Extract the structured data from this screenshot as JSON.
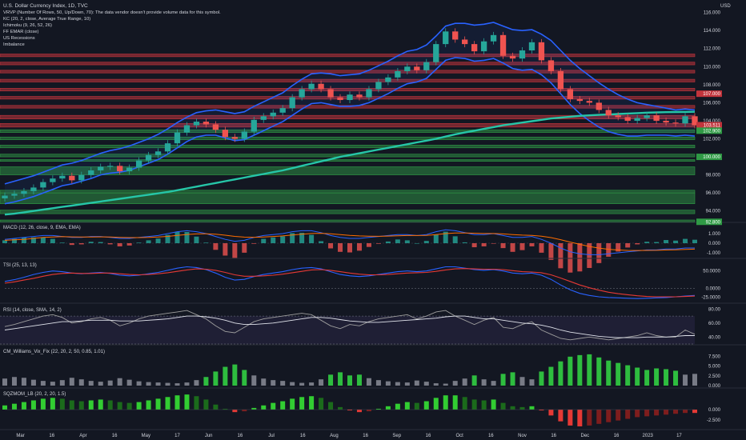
{
  "header": {
    "title": "U.S. Dollar Currency Index, 1D, TVC",
    "indicators": [
      "VRVP (Number Of Rows, 50, Up/Down, 70): The data vendor doesn't provide volume data for this symbol.",
      "KC (20, 2, close, Average True Range, 10)",
      "Ichimoku (9, 26, 52, 26)",
      "FF EMAR (close)",
      "US Recessions",
      "Imbalance"
    ],
    "currency": "USD"
  },
  "colors": {
    "background": "#131722",
    "red_zone": "#c2343c",
    "green_zone": "#2f9a45",
    "ema200": "#26c6a8",
    "keltner": "#2962ff",
    "up": "#26a69a",
    "down": "#ef5350",
    "axis_text": "#d1d4dc",
    "macd": "#2962ff",
    "signal": "#ff6d00",
    "tsi": "#2962ff",
    "tsi_signal": "#e53935",
    "rsi": "#9e9e9e",
    "rsi_band": "#7e57c2"
  },
  "chart_data": [
    {
      "type": "line",
      "panel": "price",
      "y_ticks": [
        94.0,
        96.0,
        98.0,
        100.0,
        102.0,
        104.0,
        106.0,
        108.0,
        110.0,
        112.0,
        114.0,
        116.0
      ],
      "ylim": [
        93.0,
        116.5
      ],
      "x_labels": [
        "Mar",
        "16",
        "Apr",
        "16",
        "May",
        "17",
        "Jun",
        "16",
        "Jul",
        "16",
        "Aug",
        "16",
        "Sep",
        "16",
        "Oct",
        "16",
        "Nov",
        "16",
        "Dec",
        "16",
        "2023",
        "17"
      ],
      "price_badges": [
        {
          "value": "107.000",
          "color": "#c2343c",
          "y": 107.0
        },
        {
          "value": "103.511",
          "color": "#c2343c",
          "y": 103.51
        },
        {
          "value": "102.900",
          "color": "#2f9a45",
          "y": 102.9
        },
        {
          "value": "100.000",
          "color": "#2f9a45",
          "y": 100.0
        },
        {
          "value": "92.800",
          "color": "#2f9a45",
          "y": 92.8
        }
      ],
      "resistance_zones": [
        [
          111.1,
          111.4
        ],
        [
          110.2,
          110.5
        ],
        [
          109.3,
          109.6
        ],
        [
          108.3,
          108.6
        ],
        [
          107.3,
          107.6
        ],
        [
          106.4,
          106.7
        ],
        [
          105.4,
          105.7
        ],
        [
          104.2,
          104.6
        ],
        [
          103.3,
          103.7
        ]
      ],
      "support_zones": [
        [
          102.7,
          103.0
        ],
        [
          101.9,
          102.2
        ],
        [
          101.0,
          101.3
        ],
        [
          100.0,
          100.3
        ],
        [
          99.5,
          99.7
        ],
        [
          98.0,
          98.9
        ],
        [
          96.0,
          96.3
        ],
        [
          94.8,
          96.0
        ],
        [
          93.7,
          94.1
        ],
        [
          92.8,
          93.0
        ]
      ],
      "close": [
        95.7,
        95.9,
        96.2,
        96.6,
        97.2,
        97.6,
        97.9,
        97.4,
        98.0,
        98.5,
        98.9,
        99.0,
        98.4,
        98.8,
        99.6,
        100.2,
        100.6,
        101.5,
        102.7,
        103.5,
        103.9,
        103.6,
        103.0,
        102.2,
        102.0,
        102.8,
        104.1,
        104.5,
        104.9,
        105.4,
        106.6,
        107.5,
        108.1,
        107.5,
        106.6,
        106.3,
        106.9,
        106.6,
        107.5,
        108.3,
        108.8,
        109.5,
        110.0,
        109.6,
        110.5,
        112.5,
        113.9,
        113.0,
        112.5,
        111.7,
        112.8,
        113.5,
        111.2,
        110.9,
        111.8,
        112.7,
        110.7,
        109.5,
        107.5,
        106.4,
        106.2,
        106.0,
        105.2,
        104.6,
        104.4,
        104.0,
        104.3,
        104.6,
        104.0,
        103.8,
        103.7,
        104.5,
        103.5
      ],
      "ema200": [
        93.6,
        93.7,
        93.85,
        94.0,
        94.15,
        94.3,
        94.45,
        94.6,
        94.75,
        94.9,
        95.05,
        95.2,
        95.35,
        95.5,
        95.65,
        95.8,
        95.95,
        96.1,
        96.3,
        96.5,
        96.7,
        96.9,
        97.1,
        97.3,
        97.5,
        97.7,
        97.9,
        98.1,
        98.3,
        98.5,
        98.75,
        99.0,
        99.25,
        99.5,
        99.75,
        100.0,
        100.2,
        100.4,
        100.6,
        100.8,
        101.0,
        101.2,
        101.4,
        101.6,
        101.8,
        102.0,
        102.25,
        102.5,
        102.7,
        102.9,
        103.1,
        103.3,
        103.5,
        103.65,
        103.8,
        103.95,
        104.1,
        104.25,
        104.35,
        104.45,
        104.55,
        104.6,
        104.65,
        104.7,
        104.75,
        104.8,
        104.85,
        104.9,
        104.93,
        104.95,
        104.97,
        104.98,
        105.0
      ],
      "kc_upper": [
        97.0,
        97.3,
        97.6,
        97.9,
        98.3,
        98.7,
        99.1,
        99.3,
        99.6,
        100.0,
        100.4,
        100.7,
        100.9,
        101.2,
        101.6,
        102.0,
        102.5,
        103.1,
        103.8,
        104.4,
        104.9,
        105.1,
        105.2,
        105.0,
        104.8,
        105.0,
        105.6,
        106.1,
        106.6,
        107.1,
        107.9,
        108.6,
        109.2,
        109.3,
        109.2,
        109.0,
        109.1,
        109.2,
        109.6,
        110.1,
        110.6,
        111.2,
        111.7,
        111.9,
        112.4,
        113.4,
        114.5,
        114.8,
        114.8,
        114.6,
        114.7,
        114.9,
        114.5,
        114.1,
        114.0,
        114.1,
        113.6,
        112.9,
        111.8,
        110.7,
        109.8,
        109.0,
        108.2,
        107.5,
        106.9,
        106.4,
        106.0,
        105.8,
        105.6,
        105.4,
        105.2,
        105.3,
        105.2
      ],
      "kc_lower": [
        94.8,
        95.0,
        95.3,
        95.6,
        96.0,
        96.4,
        96.8,
        97.0,
        97.3,
        97.6,
        98.0,
        98.2,
        98.3,
        98.5,
        98.9,
        99.3,
        99.7,
        100.3,
        101.0,
        101.7,
        102.2,
        102.4,
        102.4,
        102.1,
        101.8,
        101.9,
        102.4,
        102.9,
        103.4,
        103.9,
        104.6,
        105.3,
        105.9,
        106.0,
        105.8,
        105.6,
        105.6,
        105.7,
        106.0,
        106.5,
        107.0,
        107.6,
        108.1,
        108.3,
        108.7,
        109.7,
        110.7,
        111.0,
        110.9,
        110.6,
        110.7,
        110.9,
        110.4,
        109.8,
        109.6,
        109.7,
        109.1,
        108.2,
        107.0,
        105.8,
        104.8,
        104.0,
        103.3,
        102.8,
        102.5,
        102.3,
        102.3,
        102.4,
        102.4,
        102.4,
        102.3,
        102.4,
        102.3
      ]
    },
    {
      "type": "bar",
      "panel": "macd",
      "title": "MACD (12, 26, close, 9, EMA, EMA)",
      "y_ticks": [
        1.0,
        0.0,
        -1.0
      ],
      "ylim": [
        -1.5,
        1.5
      ],
      "macd": [
        0.4,
        0.5,
        0.6,
        0.7,
        0.8,
        0.8,
        0.7,
        0.6,
        0.6,
        0.7,
        0.7,
        0.6,
        0.5,
        0.5,
        0.6,
        0.7,
        0.8,
        1.0,
        1.2,
        1.3,
        1.2,
        1.0,
        0.7,
        0.4,
        0.2,
        0.3,
        0.6,
        0.8,
        0.9,
        1.0,
        1.2,
        1.3,
        1.3,
        1.1,
        0.8,
        0.6,
        0.5,
        0.5,
        0.6,
        0.7,
        0.8,
        0.9,
        0.9,
        0.8,
        0.9,
        1.2,
        1.4,
        1.3,
        1.1,
        0.9,
        0.9,
        1.0,
        0.8,
        0.6,
        0.6,
        0.7,
        0.4,
        0.0,
        -0.5,
        -0.9,
        -1.1,
        -1.2,
        -1.2,
        -1.1,
        -1.0,
        -0.9,
        -0.8,
        -0.7,
        -0.7,
        -0.6,
        -0.6,
        -0.5,
        -0.5
      ],
      "signal": [
        0.3,
        0.35,
        0.4,
        0.5,
        0.6,
        0.65,
        0.68,
        0.66,
        0.64,
        0.65,
        0.66,
        0.64,
        0.61,
        0.58,
        0.58,
        0.6,
        0.64,
        0.71,
        0.81,
        0.91,
        0.97,
        0.98,
        0.93,
        0.83,
        0.71,
        0.63,
        0.62,
        0.65,
        0.7,
        0.76,
        0.85,
        0.94,
        1.01,
        1.03,
        0.98,
        0.9,
        0.82,
        0.76,
        0.73,
        0.72,
        0.74,
        0.77,
        0.8,
        0.8,
        0.82,
        0.9,
        1.0,
        1.06,
        1.07,
        1.04,
        1.01,
        1.01,
        0.97,
        0.9,
        0.84,
        0.81,
        0.73,
        0.58,
        0.37,
        0.12,
        -0.12,
        -0.34,
        -0.51,
        -0.63,
        -0.71,
        -0.75,
        -0.76,
        -0.75,
        -0.74,
        -0.71,
        -0.69,
        -0.65,
        -0.62
      ]
    },
    {
      "type": "line",
      "panel": "tsi",
      "title": "TSI (25, 13, 13)",
      "y_ticks": [
        50.0,
        0.0,
        -25.0
      ],
      "ylim": [
        -40,
        70
      ],
      "tsi": [
        20,
        25,
        32,
        40,
        46,
        50,
        48,
        44,
        42,
        44,
        46,
        43,
        38,
        36,
        38,
        42,
        46,
        52,
        58,
        62,
        60,
        54,
        44,
        32,
        24,
        26,
        34,
        40,
        44,
        48,
        54,
        58,
        60,
        56,
        48,
        40,
        36,
        34,
        36,
        40,
        44,
        48,
        50,
        48,
        50,
        56,
        62,
        62,
        58,
        54,
        52,
        54,
        50,
        44,
        42,
        44,
        38,
        26,
        10,
        -4,
        -14,
        -20,
        -24,
        -26,
        -27,
        -28,
        -29,
        -28,
        -27,
        -26,
        -24,
        -22,
        -20
      ],
      "signal": [
        15,
        19,
        24,
        29,
        35,
        40,
        43,
        44,
        43,
        43,
        44,
        44,
        42,
        40,
        39,
        40,
        42,
        45,
        49,
        53,
        56,
        55,
        52,
        46,
        39,
        35,
        35,
        36,
        38,
        41,
        45,
        49,
        53,
        54,
        52,
        48,
        44,
        41,
        39,
        39,
        40,
        42,
        44,
        45,
        46,
        49,
        53,
        56,
        57,
        56,
        55,
        55,
        54,
        51,
        48,
        47,
        45,
        39,
        30,
        20,
        10,
        2,
        -5,
        -11,
        -15,
        -18,
        -21,
        -23,
        -24,
        -24,
        -24,
        -23,
        -22
      ]
    },
    {
      "type": "line",
      "panel": "rsi",
      "title": "RSI (14, close, SMA, 14, 2)",
      "y_ticks": [
        80.0,
        60.0,
        40.0
      ],
      "ylim": [
        30,
        85
      ],
      "bands": [
        30,
        70
      ],
      "rsi": [
        55,
        58,
        62,
        66,
        70,
        72,
        68,
        60,
        62,
        66,
        68,
        64,
        56,
        60,
        66,
        70,
        72,
        74,
        76,
        78,
        72,
        66,
        56,
        48,
        46,
        54,
        62,
        66,
        68,
        70,
        72,
        74,
        72,
        64,
        56,
        52,
        58,
        56,
        62,
        66,
        68,
        70,
        72,
        66,
        70,
        76,
        78,
        70,
        64,
        58,
        64,
        68,
        54,
        52,
        58,
        62,
        50,
        44,
        38,
        36,
        38,
        40,
        38,
        36,
        38,
        40,
        42,
        46,
        42,
        40,
        40,
        50,
        44
      ],
      "sma": [
        50,
        52,
        54,
        56,
        58,
        60,
        62,
        62,
        63,
        64,
        64,
        64,
        63,
        63,
        63,
        64,
        65,
        66,
        68,
        70,
        70,
        69,
        67,
        64,
        60,
        58,
        58,
        59,
        60,
        62,
        64,
        66,
        68,
        68,
        67,
        65,
        63,
        62,
        61,
        61,
        62,
        63,
        64,
        65,
        66,
        67,
        69,
        70,
        70,
        68,
        66,
        66,
        64,
        62,
        60,
        59,
        57,
        54,
        50,
        47,
        45,
        43,
        41,
        40,
        39,
        39,
        39,
        40,
        40,
        40,
        41,
        42,
        42
      ]
    },
    {
      "type": "bar",
      "panel": "williams_vix_fix",
      "title": "CM_Williams_Vix_Fix (22, 20, 2, 50, 0.85, 1.01)",
      "y_ticks": [
        7.5,
        5.0,
        2.5,
        0.0
      ],
      "ylim": [
        0,
        9
      ],
      "values": [
        1.8,
        2.2,
        2.0,
        1.5,
        1.2,
        1.0,
        1.4,
        2.0,
        1.6,
        1.2,
        1.0,
        1.3,
        1.9,
        1.5,
        1.1,
        0.9,
        0.8,
        0.7,
        0.6,
        0.8,
        1.4,
        2.2,
        3.6,
        4.8,
        5.4,
        4.0,
        2.6,
        1.8,
        1.4,
        1.2,
        0.9,
        0.7,
        0.8,
        1.6,
        2.8,
        3.4,
        2.6,
        2.8,
        1.9,
        1.4,
        1.1,
        0.9,
        0.8,
        1.3,
        1.0,
        0.6,
        0.5,
        1.2,
        1.8,
        2.6,
        1.6,
        1.2,
        3.0,
        3.4,
        2.2,
        1.6,
        3.6,
        4.8,
        6.2,
        7.4,
        7.8,
        8.0,
        7.2,
        6.4,
        5.8,
        5.2,
        4.6,
        4.0,
        4.4,
        4.2,
        3.8,
        2.8,
        3.0
      ],
      "highlight": [
        false,
        false,
        false,
        false,
        false,
        false,
        false,
        false,
        false,
        false,
        false,
        false,
        false,
        false,
        false,
        false,
        false,
        false,
        false,
        false,
        false,
        true,
        true,
        true,
        true,
        true,
        false,
        false,
        false,
        false,
        false,
        false,
        false,
        false,
        true,
        true,
        true,
        true,
        false,
        false,
        false,
        false,
        false,
        false,
        false,
        false,
        false,
        false,
        false,
        true,
        false,
        false,
        true,
        true,
        false,
        false,
        true,
        true,
        true,
        true,
        true,
        true,
        true,
        true,
        true,
        true,
        true,
        true,
        true,
        true,
        true,
        false,
        false
      ]
    },
    {
      "type": "bar",
      "panel": "squeeze_momentum",
      "title": "SQZMOM_LB (20, 2, 20, 1.5)",
      "y_ticks": [
        0.0,
        -2.5
      ],
      "ylim": [
        -4.2,
        4.2
      ],
      "values": [
        1.0,
        1.4,
        1.8,
        2.2,
        2.6,
        2.8,
        2.6,
        2.2,
        2.0,
        2.2,
        2.4,
        2.2,
        1.8,
        1.6,
        1.8,
        2.2,
        2.6,
        3.0,
        3.4,
        3.6,
        3.2,
        2.4,
        1.2,
        0.2,
        -0.6,
        -0.4,
        0.4,
        1.0,
        1.6,
        2.0,
        2.6,
        3.0,
        3.2,
        2.8,
        1.8,
        0.6,
        -0.2,
        -0.6,
        -0.4,
        0.2,
        0.8,
        1.4,
        1.8,
        1.6,
        2.0,
        2.8,
        3.4,
        3.4,
        3.0,
        2.4,
        2.2,
        2.4,
        1.6,
        0.8,
        0.6,
        0.8,
        -0.2,
        -1.4,
        -2.8,
        -3.8,
        -4.0,
        -3.8,
        -3.4,
        -3.0,
        -2.6,
        -2.2,
        -1.8,
        -1.6,
        -1.4,
        -1.2,
        -1.0,
        -0.8,
        -0.8
      ]
    }
  ]
}
